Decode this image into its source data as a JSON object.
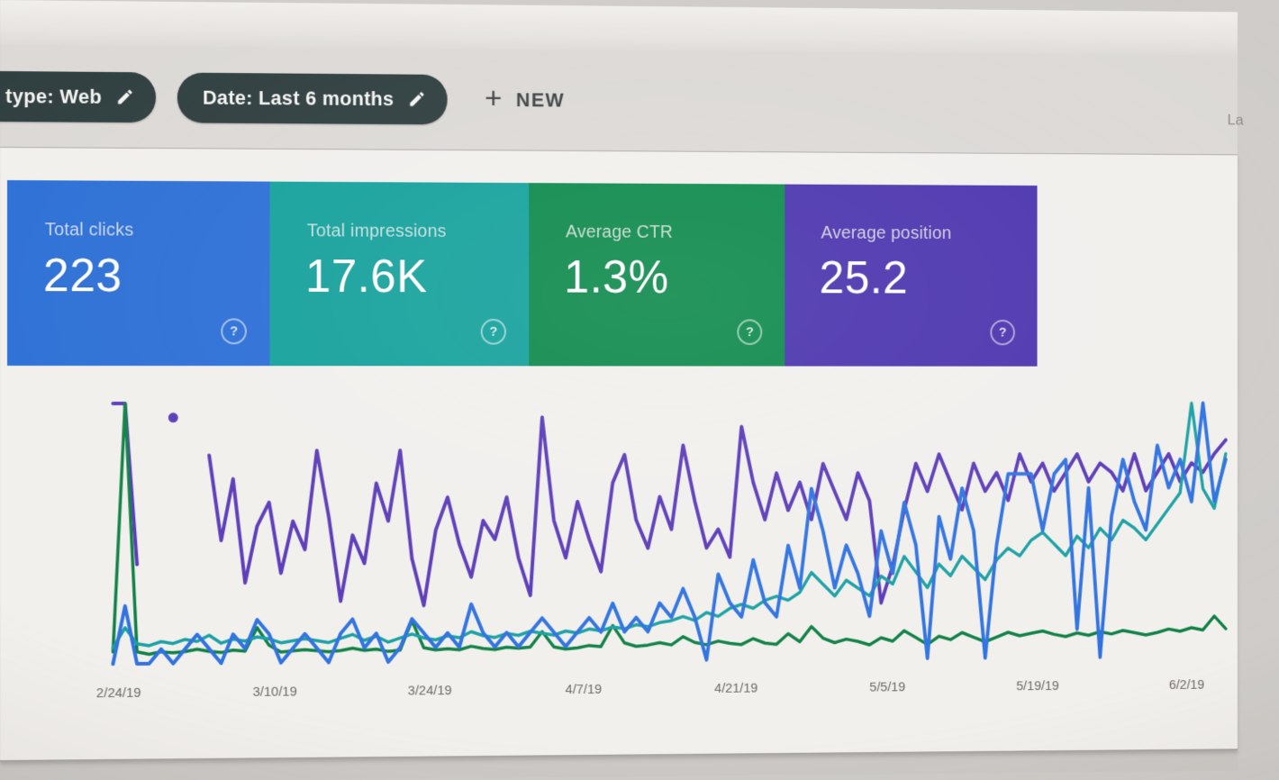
{
  "filter_bar": {
    "chips": [
      {
        "label": "type: Web",
        "icon": "edit",
        "cut_off_left": true
      },
      {
        "label": "Date: Last 6 months",
        "icon": "edit"
      }
    ],
    "new_button": {
      "label": "NEW"
    },
    "top_right_cutoff_text": "La"
  },
  "icons": {
    "help_glyph": "?",
    "plus_glyph": "+"
  },
  "colors": {
    "chip_background": "#2e3d3e",
    "panel_background": "#f2f0ed",
    "page_background": "#dcd9d6",
    "axis_label": "#6e6b68"
  },
  "metric_cards": [
    {
      "id": "total-clicks",
      "label": "Total clicks",
      "value": "223",
      "color": "#2c6fd6"
    },
    {
      "id": "total-impressions",
      "label": "Total impressions",
      "value": "17.6K",
      "color": "#15a19c"
    },
    {
      "id": "average-ctr",
      "label": "Average CTR",
      "value": "1.3%",
      "color": "#0e8a4c"
    },
    {
      "id": "average-position",
      "label": "Average position",
      "value": "25.2",
      "color": "#4b34ae"
    }
  ],
  "chart_data": {
    "type": "line",
    "note": "Search Console performance chart; no visible y-axis — each series auto-scaled to its own max; daily values estimated from pixels",
    "x_labels": [
      "2/24/19",
      "3/10/19",
      "3/24/19",
      "4/7/19",
      "4/21/19",
      "5/5/19",
      "5/19/19",
      "6/2/19"
    ],
    "x_label_positions_pct": [
      0.5,
      14.2,
      27.9,
      41.6,
      55.3,
      69.0,
      82.7,
      96.4
    ],
    "summary": {
      "total_clicks": 223,
      "total_impressions": "17.6K",
      "average_ctr": "1.3%",
      "average_position": 25.2
    },
    "series": [
      {
        "name": "Position",
        "color": "#5a3ab8",
        "stroke_width": 4,
        "unit": "avg position (est.)",
        "values": [
          55,
          55,
          21,
          null,
          null,
          52,
          null,
          null,
          44,
          26,
          39,
          17,
          29,
          34,
          19,
          30,
          24,
          45,
          31,
          13,
          27,
          21,
          38,
          30,
          45,
          22,
          12,
          28,
          35,
          25,
          18,
          30,
          26,
          35,
          22,
          14,
          52,
          30,
          22,
          34,
          26,
          19,
          38,
          44,
          30,
          24,
          35,
          28,
          46,
          34,
          24,
          28,
          22,
          50,
          38,
          30,
          40,
          32,
          38,
          30,
          42,
          36,
          30,
          40,
          34,
          12,
          20,
          32,
          42,
          36,
          44,
          38,
          32,
          42,
          36,
          40,
          34,
          44,
          38,
          42,
          36,
          40,
          44,
          38,
          42,
          40,
          36,
          44,
          36,
          40,
          44,
          38,
          42,
          40,
          44,
          47
        ]
      },
      {
        "name": "CTR",
        "color": "#0e8045",
        "stroke_width": 3.5,
        "unit": "% (est.)",
        "values": [
          1,
          22,
          1,
          0.8,
          1,
          0.9,
          1,
          1.2,
          1,
          0.9,
          1.1,
          1,
          3,
          1.5,
          0.9,
          1,
          1.1,
          1,
          0.9,
          1,
          1.2,
          1,
          1.1,
          0.9,
          1,
          3.5,
          1.2,
          1,
          1.1,
          1,
          1.3,
          1.1,
          1,
          1.2,
          1.1,
          1.2,
          2.5,
          1.2,
          1,
          1.1,
          1.3,
          1.2,
          3,
          1.5,
          1.2,
          1.3,
          1.5,
          1.3,
          2,
          1.5,
          1.3,
          1.6,
          1.4,
          1.3,
          1.8,
          1.4,
          1.3,
          2.2,
          1.5,
          2.8,
          1.8,
          1.4,
          1.7,
          1.5,
          1.2,
          1.8,
          1.5,
          2.4,
          1.8,
          1.2,
          1.9,
          1.6,
          2.2,
          1.8,
          1.4,
          1.8,
          2.2,
          1.9,
          2.1,
          2.3,
          2,
          1.8,
          2.1,
          1.9,
          2.2,
          2,
          2.3,
          2.1,
          1.9,
          2.1,
          2.4,
          2.2,
          2.5,
          2.3,
          3.5,
          2.4
        ]
      },
      {
        "name": "Impressions",
        "color": "#18a0a4",
        "stroke_width": 3.5,
        "unit": "impressions/day (est.)",
        "values": [
          40,
          90,
          50,
          45,
          55,
          50,
          60,
          55,
          70,
          50,
          60,
          55,
          65,
          60,
          50,
          55,
          60,
          55,
          50,
          60,
          70,
          55,
          65,
          50,
          60,
          70,
          60,
          55,
          65,
          60,
          75,
          65,
          60,
          70,
          65,
          75,
          70,
          65,
          75,
          70,
          80,
          75,
          85,
          80,
          90,
          85,
          95,
          100,
          110,
          100,
          120,
          110,
          130,
          140,
          130,
          150,
          160,
          150,
          170,
          220,
          190,
          160,
          200,
          180,
          160,
          210,
          190,
          260,
          220,
          180,
          240,
          210,
          260,
          230,
          200,
          250,
          280,
          260,
          300,
          320,
          290,
          260,
          310,
          280,
          330,
          300,
          350,
          330,
          300,
          340,
          380,
          420,
          650,
          430,
          380,
          520
        ]
      },
      {
        "name": "Clicks",
        "color": "#2f72e0",
        "stroke_width": 4,
        "unit": "clicks/day (est.)",
        "values": [
          0,
          4,
          0,
          0,
          1,
          0,
          1,
          2,
          1,
          0,
          2,
          1,
          3,
          2,
          0,
          1,
          2,
          1,
          0,
          2,
          3,
          1,
          2,
          0,
          1,
          3,
          2,
          1,
          2,
          1,
          4,
          2,
          1,
          2,
          1,
          2,
          3,
          2,
          1,
          2,
          3,
          2,
          4,
          2,
          3,
          2,
          4,
          3,
          5,
          3,
          0,
          6,
          4,
          3,
          7,
          4,
          3,
          8,
          5,
          12,
          9,
          5,
          8,
          6,
          3,
          9,
          6,
          11,
          8,
          0,
          10,
          7,
          12,
          9,
          0,
          8,
          13,
          13,
          13,
          9,
          13,
          14,
          2,
          12,
          0,
          10,
          14,
          11,
          9,
          15,
          12,
          14,
          11,
          18,
          11,
          14
        ]
      }
    ]
  }
}
